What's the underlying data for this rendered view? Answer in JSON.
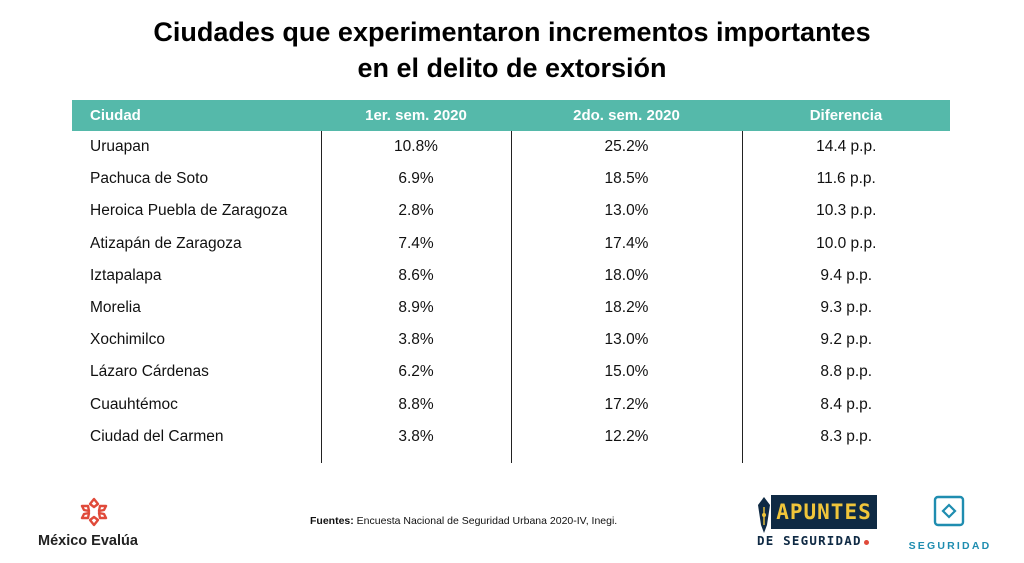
{
  "title": {
    "line1": "Ciudades que experimentaron incrementos importantes",
    "line2": "en el delito de extorsión"
  },
  "table": {
    "headers": [
      "Ciudad",
      "1er. sem. 2020",
      "2do. sem. 2020",
      "Diferencia"
    ],
    "rows": [
      [
        "Uruapan",
        "10.8%",
        "25.2%",
        "14.4 p.p."
      ],
      [
        "Pachuca de Soto",
        "6.9%",
        "18.5%",
        "11.6 p.p."
      ],
      [
        "Heroica Puebla de Zaragoza",
        "2.8%",
        "13.0%",
        "10.3 p.p."
      ],
      [
        "Atizapán de Zaragoza",
        "7.4%",
        "17.4%",
        "10.0 p.p."
      ],
      [
        "Iztapalapa",
        "8.6%",
        "18.0%",
        "9.4 p.p."
      ],
      [
        "Morelia",
        "8.9%",
        "18.2%",
        "9.3 p.p."
      ],
      [
        "Xochimilco",
        "3.8%",
        "13.0%",
        "9.2 p.p."
      ],
      [
        "Lázaro Cárdenas",
        "6.2%",
        "15.0%",
        "8.8 p.p."
      ],
      [
        "Cuauhtémoc",
        "8.8%",
        "17.2%",
        "8.4 p.p."
      ],
      [
        "Ciudad del Carmen",
        "3.8%",
        "12.2%",
        "8.3 p.p."
      ]
    ]
  },
  "footer": {
    "source_label": "Fuentes:",
    "source_text": " Encuesta Nacional de Seguridad Urbana 2020-IV, Inegi."
  },
  "logos": {
    "mexico_evalua": "México Evalúa",
    "apuntes": "APUNTES",
    "apuntes_sub": "DE SEGURIDAD",
    "seguridad": "SEGURIDAD"
  },
  "colors": {
    "header_bg": "#55b9aa",
    "mexico_evalua_accent": "#e04a3a",
    "apuntes_bg": "#0f2a44",
    "apuntes_text": "#f0c53a",
    "seguridad_blue": "#1f8db0"
  }
}
